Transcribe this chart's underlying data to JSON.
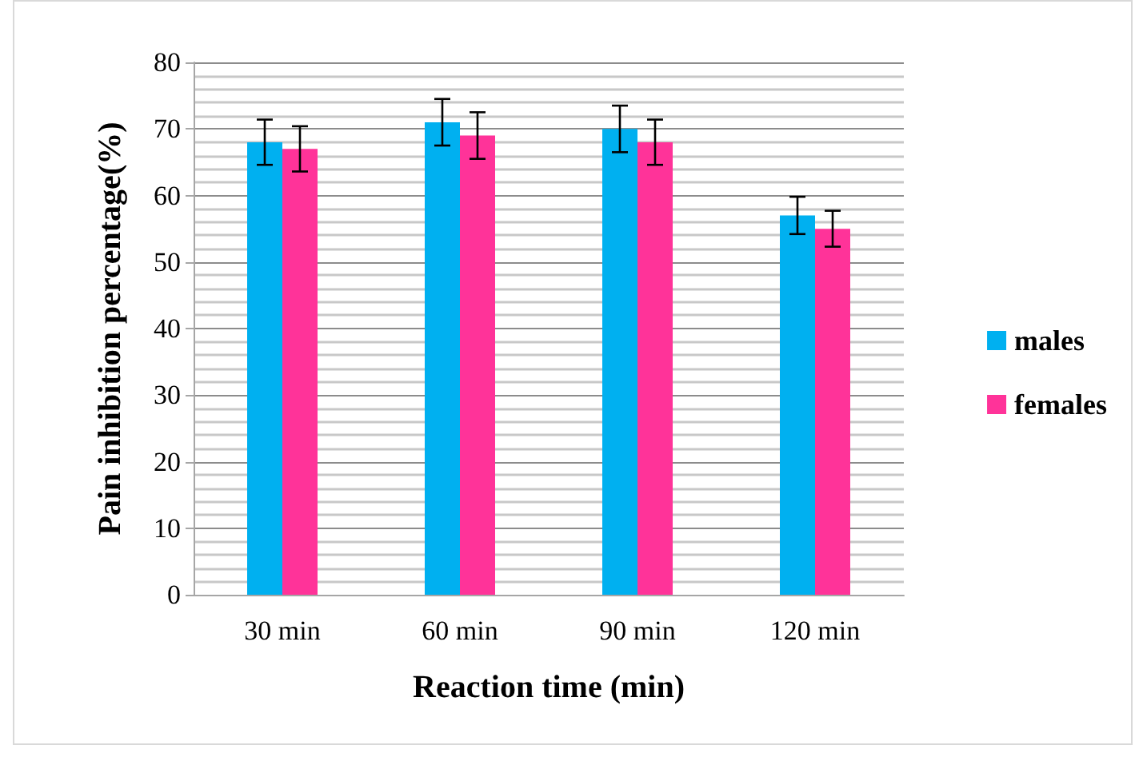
{
  "chart_data": {
    "type": "bar",
    "xlabel": "Reaction time (min)",
    "ylabel": "Pain inhibition percentage(%)",
    "categories": [
      "30 min",
      "60 min",
      "90 min",
      "120 min"
    ],
    "series": [
      {
        "name": "males",
        "color": "#00b0f0",
        "values": [
          68,
          71,
          70,
          57
        ],
        "errors": [
          3.4,
          3.5,
          3.5,
          2.8
        ]
      },
      {
        "name": "females",
        "color": "#ff3399",
        "values": [
          67,
          69,
          68,
          55
        ],
        "errors": [
          3.4,
          3.5,
          3.4,
          2.7
        ]
      }
    ],
    "ylim": [
      0,
      80
    ],
    "yticks": [
      0,
      10,
      20,
      30,
      40,
      50,
      60,
      70,
      80
    ],
    "grid": "y",
    "legend": "right"
  }
}
